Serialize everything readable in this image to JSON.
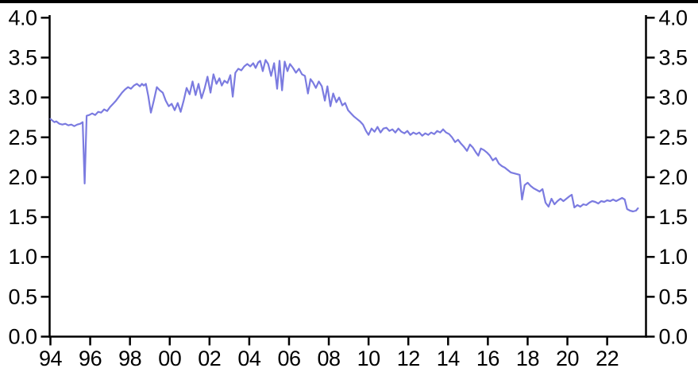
{
  "page": {
    "background_color": "#ffffff",
    "top_border_color": "#000000"
  },
  "chart_data": {
    "type": "line",
    "title": "",
    "xlabel": "",
    "ylabel": "",
    "grid": false,
    "legend": null,
    "axis_color": "#000000",
    "ylim": [
      0.0,
      4.0
    ],
    "xlim": [
      1994,
      2024
    ],
    "y_ticks": [
      {
        "value": 0.0,
        "label": "0.0"
      },
      {
        "value": 0.5,
        "label": "0.5"
      },
      {
        "value": 1.0,
        "label": "1.0"
      },
      {
        "value": 1.5,
        "label": "1.5"
      },
      {
        "value": 2.0,
        "label": "2.0"
      },
      {
        "value": 2.5,
        "label": "2.5"
      },
      {
        "value": 3.0,
        "label": "3.0"
      },
      {
        "value": 3.5,
        "label": "3.5"
      },
      {
        "value": 4.0,
        "label": "4.0"
      }
    ],
    "y_axis_left_labels": [
      "4.0",
      "3.5",
      "3.0",
      "2.5",
      "2.0",
      "1.5",
      "1.0",
      "0.5",
      "0.0"
    ],
    "y_axis_right_labels": [
      "4.0",
      "3.5",
      "3.0",
      "2.5",
      "2.0",
      "1.5",
      "1.0",
      "0.5",
      "0.0"
    ],
    "x_ticks": [
      {
        "year": 1994,
        "label": "94"
      },
      {
        "year": 1996,
        "label": "96"
      },
      {
        "year": 1998,
        "label": "98"
      },
      {
        "year": 2000,
        "label": "00"
      },
      {
        "year": 2002,
        "label": "02"
      },
      {
        "year": 2004,
        "label": "04"
      },
      {
        "year": 2006,
        "label": "06"
      },
      {
        "year": 2008,
        "label": "08"
      },
      {
        "year": 2010,
        "label": "10"
      },
      {
        "year": 2012,
        "label": "12"
      },
      {
        "year": 2014,
        "label": "14"
      },
      {
        "year": 2016,
        "label": "16"
      },
      {
        "year": 2018,
        "label": "18"
      },
      {
        "year": 2020,
        "label": "20"
      },
      {
        "year": 2022,
        "label": "22"
      }
    ],
    "series": [
      {
        "name": "line-series",
        "color": "#7b7be0",
        "points": [
          [
            1994.0,
            2.73
          ],
          [
            1994.1,
            2.71
          ],
          [
            1994.2,
            2.69
          ],
          [
            1994.3,
            2.7
          ],
          [
            1994.45,
            2.67
          ],
          [
            1994.6,
            2.66
          ],
          [
            1994.75,
            2.67
          ],
          [
            1994.9,
            2.65
          ],
          [
            1995.05,
            2.66
          ],
          [
            1995.2,
            2.64
          ],
          [
            1995.35,
            2.66
          ],
          [
            1995.5,
            2.67
          ],
          [
            1995.62,
            2.69
          ],
          [
            1995.72,
            1.92
          ],
          [
            1995.82,
            2.77
          ],
          [
            1995.95,
            2.78
          ],
          [
            1996.1,
            2.8
          ],
          [
            1996.25,
            2.78
          ],
          [
            1996.4,
            2.82
          ],
          [
            1996.55,
            2.81
          ],
          [
            1996.7,
            2.85
          ],
          [
            1996.85,
            2.83
          ],
          [
            1997.0,
            2.88
          ],
          [
            1997.15,
            2.92
          ],
          [
            1997.3,
            2.96
          ],
          [
            1997.45,
            3.01
          ],
          [
            1997.6,
            3.06
          ],
          [
            1997.75,
            3.1
          ],
          [
            1997.9,
            3.13
          ],
          [
            1998.05,
            3.11
          ],
          [
            1998.2,
            3.15
          ],
          [
            1998.35,
            3.17
          ],
          [
            1998.5,
            3.14
          ],
          [
            1998.6,
            3.17
          ],
          [
            1998.7,
            3.15
          ],
          [
            1998.8,
            3.17
          ],
          [
            1998.92,
            3.02
          ],
          [
            1999.05,
            2.81
          ],
          [
            1999.2,
            2.96
          ],
          [
            1999.35,
            3.13
          ],
          [
            1999.5,
            3.09
          ],
          [
            1999.65,
            3.06
          ],
          [
            1999.8,
            2.96
          ],
          [
            1999.95,
            2.89
          ],
          [
            2000.1,
            2.92
          ],
          [
            2000.25,
            2.84
          ],
          [
            2000.4,
            2.93
          ],
          [
            2000.55,
            2.82
          ],
          [
            2000.7,
            2.96
          ],
          [
            2000.85,
            3.12
          ],
          [
            2001.0,
            3.04
          ],
          [
            2001.15,
            3.2
          ],
          [
            2001.3,
            3.03
          ],
          [
            2001.45,
            3.17
          ],
          [
            2001.6,
            2.99
          ],
          [
            2001.75,
            3.11
          ],
          [
            2001.9,
            3.26
          ],
          [
            2002.05,
            3.06
          ],
          [
            2002.2,
            3.29
          ],
          [
            2002.35,
            3.17
          ],
          [
            2002.5,
            3.24
          ],
          [
            2002.62,
            3.15
          ],
          [
            2002.75,
            3.21
          ],
          [
            2002.9,
            3.18
          ],
          [
            2003.05,
            3.28
          ],
          [
            2003.17,
            3.01
          ],
          [
            2003.3,
            3.31
          ],
          [
            2003.45,
            3.36
          ],
          [
            2003.6,
            3.34
          ],
          [
            2003.75,
            3.39
          ],
          [
            2003.9,
            3.42
          ],
          [
            2004.05,
            3.39
          ],
          [
            2004.2,
            3.43
          ],
          [
            2004.32,
            3.37
          ],
          [
            2004.45,
            3.44
          ],
          [
            2004.55,
            3.46
          ],
          [
            2004.68,
            3.33
          ],
          [
            2004.82,
            3.47
          ],
          [
            2004.95,
            3.42
          ],
          [
            2005.1,
            3.27
          ],
          [
            2005.25,
            3.43
          ],
          [
            2005.4,
            3.11
          ],
          [
            2005.52,
            3.46
          ],
          [
            2005.65,
            3.09
          ],
          [
            2005.78,
            3.45
          ],
          [
            2005.92,
            3.33
          ],
          [
            2006.05,
            3.42
          ],
          [
            2006.2,
            3.37
          ],
          [
            2006.35,
            3.31
          ],
          [
            2006.5,
            3.36
          ],
          [
            2006.65,
            3.29
          ],
          [
            2006.8,
            3.27
          ],
          [
            2006.95,
            3.05
          ],
          [
            2007.08,
            3.23
          ],
          [
            2007.2,
            3.19
          ],
          [
            2007.35,
            3.12
          ],
          [
            2007.5,
            3.2
          ],
          [
            2007.65,
            3.14
          ],
          [
            2007.8,
            2.96
          ],
          [
            2007.93,
            3.14
          ],
          [
            2008.08,
            2.89
          ],
          [
            2008.22,
            3.05
          ],
          [
            2008.38,
            2.94
          ],
          [
            2008.52,
            3.0
          ],
          [
            2008.68,
            2.9
          ],
          [
            2008.82,
            2.93
          ],
          [
            2008.97,
            2.84
          ],
          [
            2009.12,
            2.8
          ],
          [
            2009.27,
            2.76
          ],
          [
            2009.42,
            2.73
          ],
          [
            2009.57,
            2.7
          ],
          [
            2009.72,
            2.66
          ],
          [
            2009.87,
            2.58
          ],
          [
            2010.0,
            2.53
          ],
          [
            2010.15,
            2.61
          ],
          [
            2010.3,
            2.57
          ],
          [
            2010.45,
            2.63
          ],
          [
            2010.6,
            2.56
          ],
          [
            2010.75,
            2.61
          ],
          [
            2010.9,
            2.62
          ],
          [
            2011.05,
            2.58
          ],
          [
            2011.2,
            2.6
          ],
          [
            2011.35,
            2.56
          ],
          [
            2011.5,
            2.61
          ],
          [
            2011.65,
            2.57
          ],
          [
            2011.8,
            2.55
          ],
          [
            2011.95,
            2.58
          ],
          [
            2012.1,
            2.53
          ],
          [
            2012.25,
            2.56
          ],
          [
            2012.4,
            2.54
          ],
          [
            2012.55,
            2.56
          ],
          [
            2012.7,
            2.52
          ],
          [
            2012.85,
            2.55
          ],
          [
            2013.0,
            2.53
          ],
          [
            2013.15,
            2.56
          ],
          [
            2013.3,
            2.54
          ],
          [
            2013.45,
            2.58
          ],
          [
            2013.6,
            2.56
          ],
          [
            2013.75,
            2.6
          ],
          [
            2013.9,
            2.56
          ],
          [
            2014.05,
            2.54
          ],
          [
            2014.2,
            2.5
          ],
          [
            2014.35,
            2.44
          ],
          [
            2014.5,
            2.47
          ],
          [
            2014.65,
            2.42
          ],
          [
            2014.8,
            2.38
          ],
          [
            2014.95,
            2.33
          ],
          [
            2015.1,
            2.41
          ],
          [
            2015.25,
            2.37
          ],
          [
            2015.4,
            2.31
          ],
          [
            2015.52,
            2.27
          ],
          [
            2015.65,
            2.36
          ],
          [
            2015.8,
            2.34
          ],
          [
            2015.95,
            2.31
          ],
          [
            2016.1,
            2.27
          ],
          [
            2016.25,
            2.21
          ],
          [
            2016.4,
            2.24
          ],
          [
            2016.55,
            2.17
          ],
          [
            2016.7,
            2.14
          ],
          [
            2016.85,
            2.12
          ],
          [
            2017.0,
            2.09
          ],
          [
            2017.15,
            2.06
          ],
          [
            2017.3,
            2.05
          ],
          [
            2017.45,
            2.04
          ],
          [
            2017.6,
            2.03
          ],
          [
            2017.72,
            1.72
          ],
          [
            2017.85,
            1.9
          ],
          [
            2018.0,
            1.93
          ],
          [
            2018.15,
            1.89
          ],
          [
            2018.3,
            1.86
          ],
          [
            2018.45,
            1.84
          ],
          [
            2018.6,
            1.82
          ],
          [
            2018.75,
            1.85
          ],
          [
            2018.9,
            1.68
          ],
          [
            2019.05,
            1.63
          ],
          [
            2019.2,
            1.73
          ],
          [
            2019.35,
            1.66
          ],
          [
            2019.5,
            1.7
          ],
          [
            2019.65,
            1.73
          ],
          [
            2019.8,
            1.7
          ],
          [
            2019.95,
            1.73
          ],
          [
            2020.1,
            1.76
          ],
          [
            2020.22,
            1.78
          ],
          [
            2020.35,
            1.62
          ],
          [
            2020.5,
            1.65
          ],
          [
            2020.65,
            1.63
          ],
          [
            2020.8,
            1.66
          ],
          [
            2020.95,
            1.65
          ],
          [
            2021.1,
            1.68
          ],
          [
            2021.25,
            1.7
          ],
          [
            2021.4,
            1.69
          ],
          [
            2021.55,
            1.67
          ],
          [
            2021.7,
            1.7
          ],
          [
            2021.85,
            1.69
          ],
          [
            2022.0,
            1.71
          ],
          [
            2022.15,
            1.7
          ],
          [
            2022.3,
            1.72
          ],
          [
            2022.45,
            1.7
          ],
          [
            2022.6,
            1.72
          ],
          [
            2022.75,
            1.74
          ],
          [
            2022.88,
            1.72
          ],
          [
            2023.0,
            1.6
          ],
          [
            2023.15,
            1.58
          ],
          [
            2023.3,
            1.57
          ],
          [
            2023.45,
            1.58
          ],
          [
            2023.55,
            1.61
          ]
        ]
      }
    ]
  }
}
